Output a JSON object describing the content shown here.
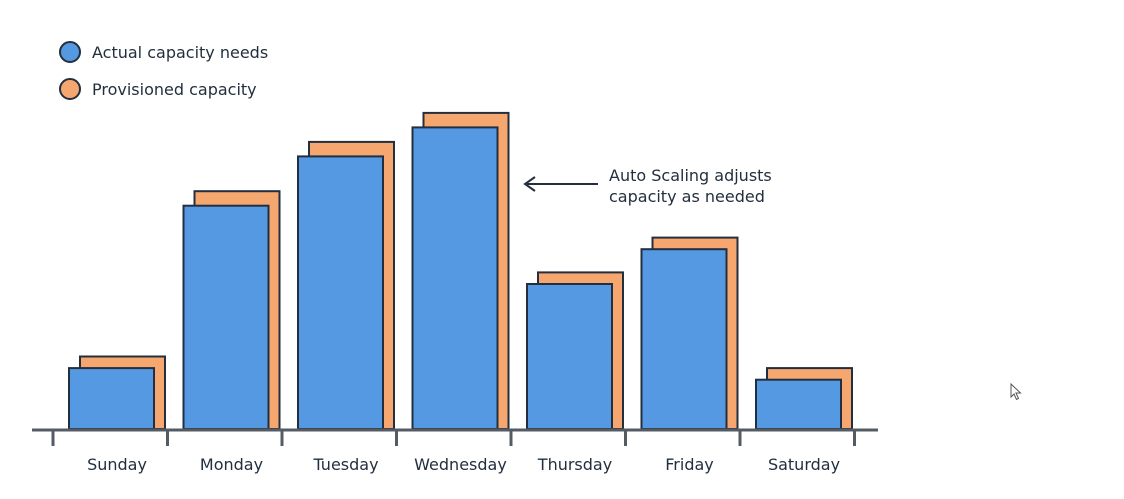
{
  "chart_data": {
    "type": "bar",
    "categories": [
      "Sunday",
      "Monday",
      "Tuesday",
      "Wednesday",
      "Thursday",
      "Friday",
      "Saturday"
    ],
    "series": [
      {
        "name": "Actual capacity needs",
        "values": [
          21,
          77,
          94,
          104,
          50,
          62,
          17
        ],
        "color": "#5499e1"
      },
      {
        "name": "Provisioned capacity",
        "values": [
          25,
          82,
          99,
          109,
          54,
          66,
          21
        ],
        "color": "#f5a76f"
      }
    ],
    "ylim": [
      0,
      115
    ],
    "grid": false,
    "legend_position": "top-left",
    "annotation": {
      "lines": [
        "Auto Scaling adjusts",
        "capacity as needed"
      ],
      "points_to": "Wednesday"
    }
  }
}
